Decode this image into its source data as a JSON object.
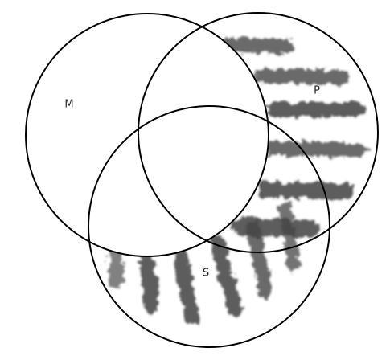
{
  "nodes": [
    {
      "label": "M"
    },
    {
      "label": "P"
    },
    {
      "label": "S"
    }
  ]
}
